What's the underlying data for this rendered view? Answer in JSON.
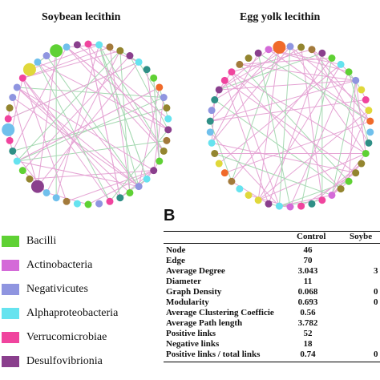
{
  "panel_a": {
    "left_title": "Soybean lecithin",
    "right_title": "Egg yolk lecithin",
    "colors": {
      "bacilli": "#5fd134",
      "actinobacteria": "#d46ad8",
      "negativicutes": "#8f95e0",
      "alphaproteobacteria": "#66e3ef",
      "verrucomicrobiae": "#f0449e",
      "desulfovibrionia": "#8a3f8d",
      "orange": "#f06a2a",
      "olive": "#93852f",
      "brown": "#a37a3b",
      "lightblue": "#70c0ec",
      "teal": "#2f8f86",
      "yellow": "#e0d83a",
      "positive_edge": "#e5a4d4",
      "negative_edge": "#a6d9b2"
    }
  },
  "legend": [
    {
      "label": "Bacilli",
      "color": "#5fd134"
    },
    {
      "label": "Actinobacteria",
      "color": "#d46ad8"
    },
    {
      "label": "Negativicutes",
      "color": "#8f95e0"
    },
    {
      "label": "Alphaproteobacteria",
      "color": "#66e3ef"
    },
    {
      "label": "Verrucomicrobiae",
      "color": "#f0449e"
    },
    {
      "label": "Desulfovibrionia",
      "color": "#8a3f8d"
    }
  ],
  "panel_b": {
    "letter": "B",
    "headers": [
      "Control",
      "Soybe"
    ],
    "rows": [
      {
        "label": "Node",
        "control": "46",
        "soy": ""
      },
      {
        "label": "Edge",
        "control": "70",
        "soy": ""
      },
      {
        "label": "Average Degree",
        "control": "3.043",
        "soy": "3"
      },
      {
        "label": "Diameter",
        "control": "11",
        "soy": ""
      },
      {
        "label": "Graph Density",
        "control": "0.068",
        "soy": "0"
      },
      {
        "label": "Modularity",
        "control": "0.693",
        "soy": "0"
      },
      {
        "label": "Average Clustering Coefficie",
        "control": "0.56",
        "soy": ""
      },
      {
        "label": "Average Path length",
        "control": "3.782",
        "soy": ""
      },
      {
        "label": "Positive links",
        "control": "52",
        "soy": ""
      },
      {
        "label": "Negative links",
        "control": "18",
        "soy": ""
      },
      {
        "label": "Positive links / total links",
        "control": "0.74",
        "soy": "0"
      }
    ]
  }
}
